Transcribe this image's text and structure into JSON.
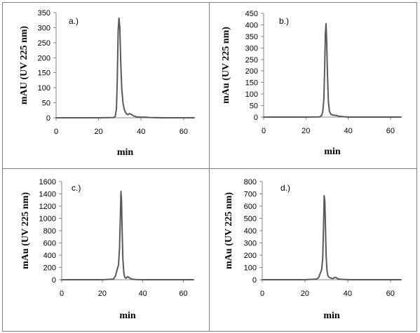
{
  "chart_data": [
    {
      "type": "line",
      "panel_label": "a.)",
      "xlabel": "min",
      "ylabel": "mAU (UV 225 nm)",
      "xlim": [
        0,
        65
      ],
      "ylim": [
        0,
        350
      ],
      "xticks": [
        0,
        20,
        40,
        60
      ],
      "yticks": [
        0,
        50,
        100,
        150,
        200,
        250,
        300,
        350
      ],
      "grid": false,
      "series": [
        {
          "x": [
            0,
            20,
            27,
            27.8,
            28.4,
            28.8,
            29.2,
            29.6,
            30.0,
            30.4,
            30.9,
            31.5,
            32.2,
            33.0,
            33.8,
            34.5,
            35.5,
            36.5,
            38,
            40,
            42,
            44,
            50,
            65
          ],
          "y": [
            0,
            0,
            1,
            4,
            30,
            130,
            290,
            332,
            300,
            190,
            95,
            48,
            25,
            14,
            10,
            14,
            11,
            6,
            3,
            2,
            2,
            1,
            0,
            0
          ]
        }
      ]
    },
    {
      "type": "line",
      "panel_label": "b.)",
      "xlabel": "min",
      "ylabel": "mAu (UV 225 nm)",
      "xlim": [
        0,
        65
      ],
      "ylim": [
        0,
        450
      ],
      "xticks": [
        0,
        20,
        40,
        60
      ],
      "yticks": [
        0,
        50,
        100,
        150,
        200,
        250,
        300,
        350,
        400,
        450
      ],
      "grid": false,
      "series": [
        {
          "x": [
            0,
            20,
            26.5,
            27.5,
            28.0,
            28.5,
            28.9,
            29.2,
            29.5,
            29.8,
            30.2,
            30.6,
            31.1,
            31.8,
            32.6,
            33.5,
            34.5,
            35.5,
            37,
            40,
            65
          ],
          "y": [
            0,
            0,
            1,
            8,
            25,
            80,
            220,
            360,
            405,
            330,
            180,
            70,
            25,
            12,
            9,
            8,
            7,
            4,
            2,
            0,
            0
          ]
        }
      ]
    },
    {
      "type": "line",
      "panel_label": "c.)",
      "xlabel": "min",
      "ylabel": "mAu (UV 225 nm)",
      "xlim": [
        0,
        65
      ],
      "ylim": [
        0,
        1600
      ],
      "xticks": [
        0,
        20,
        40,
        60
      ],
      "yticks": [
        0,
        200,
        400,
        600,
        800,
        1000,
        1200,
        1400,
        1600
      ],
      "grid": false,
      "series": [
        {
          "x": [
            0,
            20,
            25.5,
            26.5,
            27.3,
            28.0,
            28.5,
            28.9,
            29.2,
            29.5,
            29.8,
            30.2,
            30.7,
            31.2,
            31.8,
            32.5,
            33.2,
            34.0,
            35,
            36.5,
            40,
            65
          ],
          "y": [
            0,
            0,
            10,
            60,
            160,
            240,
            500,
            1000,
            1440,
            1300,
            800,
            320,
            90,
            35,
            25,
            50,
            35,
            18,
            8,
            3,
            0,
            0
          ]
        }
      ]
    },
    {
      "type": "line",
      "panel_label": "d.)",
      "xlabel": "min",
      "ylabel": "mAu (UV 225 nm)",
      "xlim": [
        0,
        65
      ],
      "ylim": [
        0,
        800
      ],
      "xticks": [
        0,
        20,
        40,
        60
      ],
      "yticks": [
        0,
        100,
        200,
        300,
        400,
        500,
        600,
        700,
        800
      ],
      "grid": false,
      "series": [
        {
          "x": [
            0,
            20,
            25.5,
            26.5,
            27.2,
            27.8,
            28.3,
            28.7,
            29.0,
            29.3,
            29.6,
            29.9,
            30.3,
            30.8,
            31.5,
            32.3,
            33.0,
            33.7,
            34.4,
            35.2,
            36.2,
            38,
            42,
            65
          ],
          "y": [
            0,
            0,
            5,
            20,
            55,
            80,
            170,
            420,
            685,
            640,
            430,
            200,
            75,
            30,
            18,
            12,
            10,
            16,
            20,
            10,
            4,
            2,
            0,
            0
          ]
        }
      ]
    }
  ]
}
